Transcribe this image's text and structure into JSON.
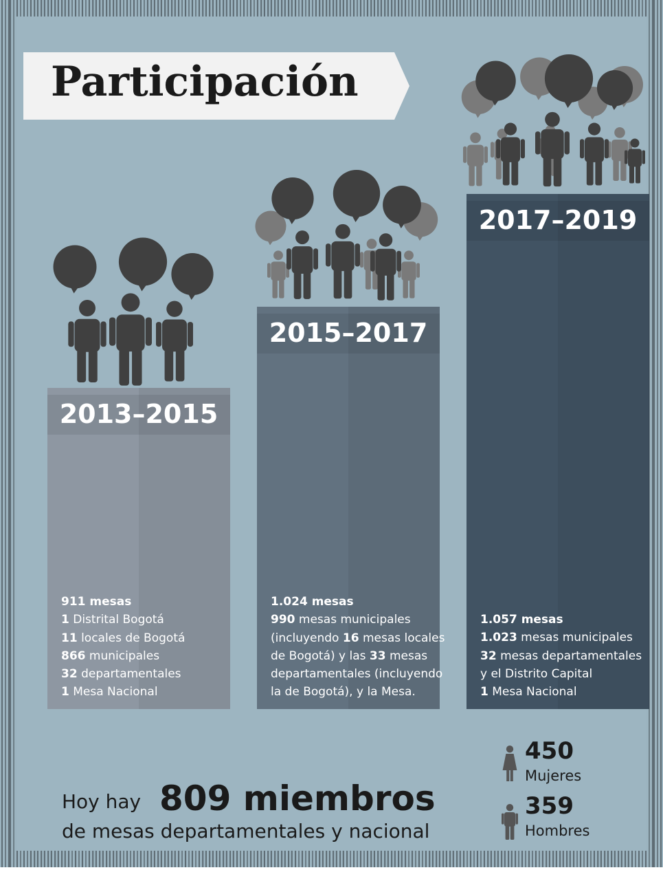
{
  "title": "Participación",
  "periods": [
    {
      "label": "2013–2015",
      "lines": [
        [
          {
            "t": "911 mesas",
            "b": true
          }
        ],
        [
          {
            "t": "1",
            "b": true
          },
          {
            "t": " Distrital Bogotá",
            "b": false
          }
        ],
        [
          {
            "t": "11",
            "b": true
          },
          {
            "t": " locales de Bogotá",
            "b": false
          }
        ],
        [
          {
            "t": "866",
            "b": true
          },
          {
            "t": " municipales",
            "b": false
          }
        ],
        [
          {
            "t": "32",
            "b": true
          },
          {
            "t": " departamentales",
            "b": false
          }
        ],
        [
          {
            "t": "1",
            "b": true
          },
          {
            "t": " Mesa Nacional",
            "b": false
          }
        ]
      ]
    },
    {
      "label": "2015–2017",
      "lines": [
        [
          {
            "t": "1.024 mesas",
            "b": true
          }
        ],
        [
          {
            "t": "990",
            "b": true
          },
          {
            "t": " mesas municipales",
            "b": false
          }
        ],
        [
          {
            "t": "(incluyendo ",
            "b": false
          },
          {
            "t": "16",
            "b": true
          },
          {
            "t": " mesas locales",
            "b": false
          }
        ],
        [
          {
            "t": "de Bogotá) y las ",
            "b": false
          },
          {
            "t": "33",
            "b": true
          },
          {
            "t": " mesas",
            "b": false
          }
        ],
        [
          {
            "t": "departamentales (incluyendo",
            "b": false
          }
        ],
        [
          {
            "t": "la de Bogotá), y la Mesa.",
            "b": false
          }
        ]
      ]
    },
    {
      "label": "2017–2019",
      "lines": [
        [
          {
            "t": "1.057 mesas",
            "b": true
          }
        ],
        [
          {
            "t": "1.023",
            "b": true
          },
          {
            "t": " mesas municipales",
            "b": false
          }
        ],
        [
          {
            "t": "32",
            "b": true
          },
          {
            "t": " mesas departamentales",
            "b": false
          }
        ],
        [
          {
            "t": "y el Distrito Capital",
            "b": false
          }
        ],
        [
          {
            "t": "1",
            "b": true
          },
          {
            "t": " Mesa Nacional",
            "b": false
          }
        ]
      ]
    }
  ],
  "summary": {
    "prefix": "Hoy hay",
    "highlight": "809 miembros",
    "rest": "de mesas departamentales y nacional"
  },
  "gender": [
    {
      "value": 450,
      "label": "Mujeres"
    },
    {
      "value": 359,
      "label": "Hombres"
    }
  ]
}
